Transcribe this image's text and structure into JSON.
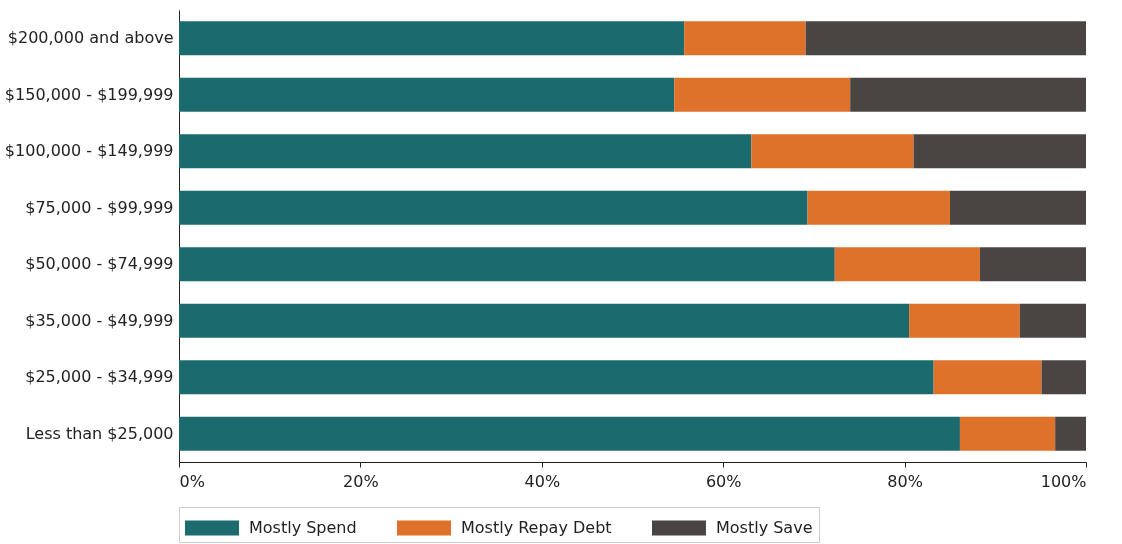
{
  "chart_data": {
    "type": "bar",
    "orientation": "horizontal",
    "stacked": true,
    "categories": [
      "$200,000 and above",
      "$150,000 - $199,999",
      "$100,000 - $149,999",
      "$75,000 - $99,999",
      "$50,000 - $74,999",
      "$35,000 - $49,999",
      "$25,000 - $34,999",
      "Less than $25,000"
    ],
    "series": [
      {
        "name": "Mostly Spend",
        "color": "#1b6a6e",
        "values": [
          55.7,
          54.6,
          63.1,
          69.3,
          72.3,
          80.5,
          83.2,
          86.1
        ]
      },
      {
        "name": "Mostly Repay Debt",
        "color": "#de722b",
        "values": [
          13.4,
          19.4,
          17.9,
          15.7,
          16.0,
          12.2,
          11.9,
          10.5
        ]
      },
      {
        "name": "Mostly Save",
        "color": "#4a4542",
        "values": [
          30.9,
          26.0,
          19.0,
          15.0,
          11.7,
          7.3,
          4.9,
          3.4
        ]
      }
    ],
    "xlim": [
      0,
      100
    ],
    "xticks": [
      {
        "value": 0,
        "label": "0%"
      },
      {
        "value": 20,
        "label": "20%"
      },
      {
        "value": 40,
        "label": "40%"
      },
      {
        "value": 60,
        "label": "60%"
      },
      {
        "value": 80,
        "label": "80%"
      },
      {
        "value": 100,
        "label": "100%"
      }
    ],
    "grid": false,
    "legend": "bottom"
  }
}
